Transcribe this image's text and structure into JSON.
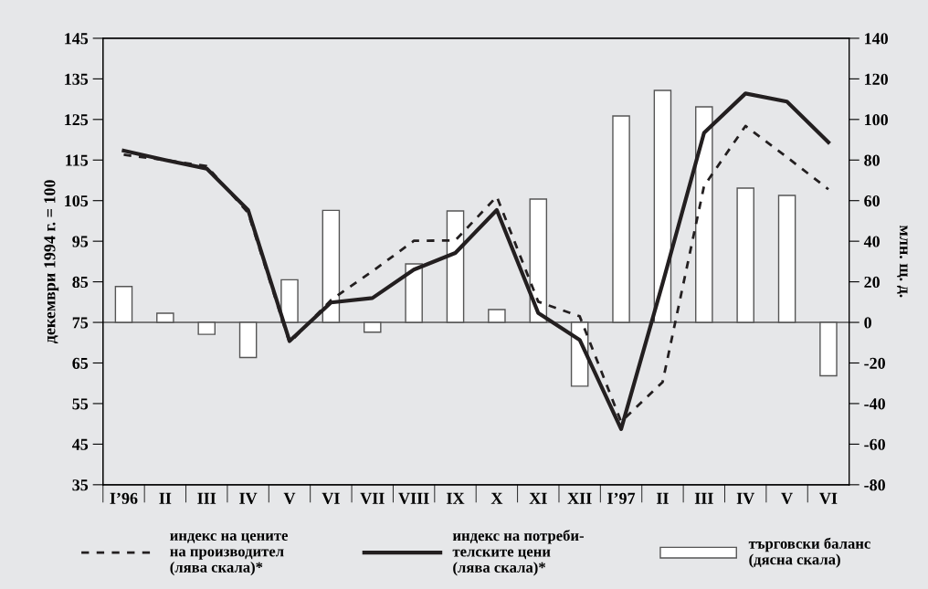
{
  "chart_data": {
    "type": "line",
    "categories": [
      "I’96",
      "II",
      "III",
      "IV",
      "V",
      "VI",
      "VII",
      "VIII",
      "IX",
      "X",
      "XI",
      "XII",
      "I’97",
      "II",
      "III",
      "IV",
      "V",
      "VI"
    ],
    "ylabel": "декември 1994 г. = 100",
    "y2label": "млн. щ. д.",
    "ylim": [
      35,
      145
    ],
    "yticks": [
      35,
      45,
      55,
      65,
      75,
      85,
      95,
      105,
      115,
      125,
      135,
      145
    ],
    "y2lim": [
      -80,
      140
    ],
    "y2ticks": [
      -80,
      -60,
      -40,
      -20,
      0,
      20,
      40,
      60,
      80,
      100,
      120,
      140
    ],
    "grid": false,
    "legend": "bottom",
    "ref_lines": [
      {
        "axis": "y2",
        "value": 0,
        "color": "#555555"
      }
    ],
    "series": [
      {
        "name": "индекс на цените\nна производител\n(лява скала)*",
        "color": "#231f20",
        "line_style": "dashed",
        "values": [
          116.3,
          115,
          113.5,
          102,
          70,
          80.5,
          87.6,
          95.1,
          95.2,
          106,
          80.1,
          76.5,
          50.5,
          60.3,
          108.6,
          123.4,
          115.7,
          107.8
        ]
      },
      {
        "name": "индекс на потреби-\nтелските цени\n(лява скала)*",
        "color": "#231f20",
        "line_style": "solid",
        "values": [
          117.3,
          115,
          112.9,
          102.7,
          70.4,
          79.9,
          81,
          88,
          92.1,
          102.7,
          77.3,
          70.7,
          48.7,
          84.6,
          121.7,
          131.4,
          129.4,
          119.4
        ]
      },
      {
        "name": "търговски баланс\n(дясна скала)",
        "type": "bar",
        "axis": "y2",
        "color": "#ffffff",
        "values": [
          17.7,
          4.5,
          -5.9,
          -17.3,
          21,
          55.2,
          -4.8,
          28.8,
          54.9,
          6.3,
          60.8,
          -31.4,
          101.7,
          114.3,
          106.2,
          66.2,
          62.6,
          -26.3
        ]
      }
    ]
  }
}
